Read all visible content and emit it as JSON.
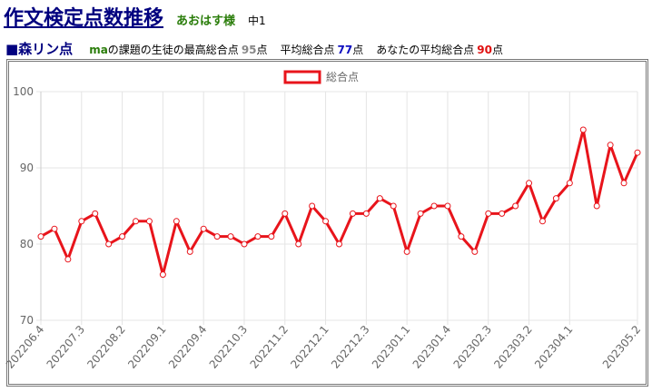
{
  "header": {
    "title": "作文検定点数推移",
    "user": "あおはす様",
    "grade": "中1"
  },
  "summary": {
    "heading": "■森リン点",
    "subject": "ma",
    "items": [
      {
        "label": "の課題の生徒の最高総合点",
        "value": 95,
        "unit": "点"
      },
      {
        "label": "平均総合点",
        "value": 77,
        "unit": "点"
      },
      {
        "label": "あなたの平均総合点",
        "value": 90,
        "unit": "点"
      }
    ]
  },
  "chart_data": {
    "type": "line",
    "categories": [
      "202206.4",
      null,
      null,
      "202207.3",
      null,
      null,
      "202208.2",
      null,
      null,
      "202209.1",
      null,
      null,
      "202209.4",
      null,
      null,
      "202210.3",
      null,
      null,
      "202211.2",
      null,
      null,
      "202212.1",
      null,
      null,
      "202212.3",
      null,
      null,
      "202301.1",
      null,
      null,
      "202301.4",
      null,
      null,
      "202302.3",
      null,
      null,
      "202303.2",
      null,
      null,
      "202304.1",
      null,
      null,
      null,
      null,
      "202305.2"
    ],
    "series": [
      {
        "name": "総合点",
        "color": "#e8141b",
        "values": [
          81,
          82,
          78,
          83,
          84,
          80,
          81,
          83,
          83,
          76,
          83,
          79,
          82,
          81,
          81,
          80,
          81,
          81,
          84,
          80,
          85,
          83,
          80,
          84,
          84,
          86,
          85,
          79,
          84,
          85,
          85,
          81,
          79,
          84,
          84,
          85,
          88,
          83,
          86,
          88,
          95,
          85,
          93,
          88,
          92
        ]
      }
    ],
    "ylim": [
      70,
      100
    ],
    "yticks": [
      70,
      80,
      90,
      100
    ],
    "grid": true,
    "legend": "top"
  }
}
